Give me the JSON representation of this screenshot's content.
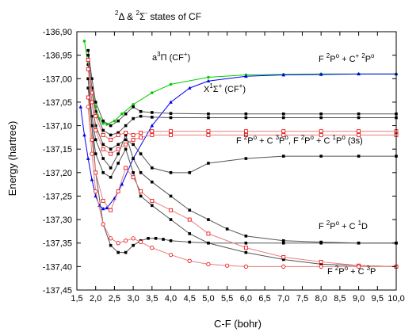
{
  "chart_data": {
    "type": "line",
    "title": "<sup>2</sup>Δ & <sup>2</sup>Σ<sup>-</sup> states of CF",
    "title_parts": [
      "2",
      "Δ & ",
      "2",
      "Σ",
      "-",
      " states of CF"
    ],
    "xlabel": "C-F (bohr)",
    "ylabel": "Energy (hartree)",
    "xlim": [
      1.5,
      10.0
    ],
    "ylim": [
      -137.45,
      -136.9
    ],
    "grid": false,
    "x_ticks": [
      "1,5",
      "2,0",
      "2,5",
      "3,0",
      "3,5",
      "4,0",
      "4,5",
      "5,0",
      "5,5",
      "6,0",
      "6,5",
      "7,0",
      "7,5",
      "8,0",
      "8,5",
      "9,0",
      "9,5",
      "10,0"
    ],
    "y_ticks": [
      "-136,90",
      "-136,95",
      "-137,00",
      "-137,05",
      "-137,10",
      "-137,15",
      "-137,20",
      "-137,25",
      "-137,30",
      "-137,35",
      "-137,40",
      "-137,45"
    ],
    "annotations": {
      "a3pi": {
        "main": "a",
        "sup1": "3",
        "mid": "Π (CF",
        "sup2": "+",
        "end": ")"
      },
      "x1sigma": {
        "main": "X",
        "sup1": "1",
        "mid": "Σ",
        "sup2": "+",
        "end": " (CF",
        "sup3": "+",
        "end2": ")"
      },
      "asym1": {
        "p1": "F ",
        "s1": "2",
        "p2": "P",
        "s2": "o",
        "p3": " + C",
        "s3": "+",
        "p4": " ",
        "s4": "2",
        "p5": "P",
        "s5": "o"
      },
      "asym2": {
        "p1": "F ",
        "s1": "2",
        "p2": "P",
        "s2": "o",
        "p3": " + C ",
        "s3": "3",
        "p4": "P",
        "s4": "o",
        "p5": ", F ",
        "s5": "2",
        "p6": "P",
        "s6": "o",
        "p7": " + C ",
        "s7": "1",
        "p8": "P",
        "s8": "o",
        "p9": " (3s)"
      },
      "asym3": {
        "p1": "F ",
        "s1": "2",
        "p2": "P",
        "s2": "o",
        "p3": " + C ",
        "s3": "1",
        "p4": "D"
      },
      "asym4": {
        "p1": "F ",
        "s1": "2",
        "p2": "P",
        "s2": "o",
        "p3": " + C ",
        "s3": "3",
        "p4": "P"
      }
    },
    "series": [
      {
        "color": "#00cc00",
        "marker": "circle",
        "x": [
          1.7,
          1.8,
          1.9,
          2.0,
          2.1,
          2.2,
          2.3,
          2.5,
          2.7,
          3.0,
          3.5,
          4.0,
          5.0,
          6.0,
          7.0,
          8.0,
          9.0,
          10.0
        ],
        "y": [
          -136.92,
          -136.97,
          -137.02,
          -137.06,
          -137.085,
          -137.095,
          -137.097,
          -137.09,
          -137.075,
          -137.055,
          -137.03,
          -137.012,
          -136.997,
          -136.992,
          -136.991,
          -136.99,
          -136.99,
          -136.99
        ]
      },
      {
        "color": "#0000ee",
        "marker": "triangle",
        "x": [
          1.6,
          1.7,
          1.8,
          1.9,
          2.0,
          2.1,
          2.2,
          2.3,
          2.5,
          2.7,
          3.0,
          3.5,
          4.0,
          4.5,
          5.0,
          6.0,
          7.0,
          8.0,
          9.0,
          10.0
        ],
        "y": [
          -137.06,
          -137.12,
          -137.17,
          -137.215,
          -137.25,
          -137.27,
          -137.277,
          -137.275,
          -137.255,
          -137.225,
          -137.17,
          -137.1,
          -137.05,
          -137.02,
          -137.005,
          -136.995,
          -136.992,
          -136.991,
          -136.99,
          -136.99
        ]
      },
      {
        "color": "#000000",
        "marker": "square",
        "x": [
          1.8,
          1.9,
          2.0,
          2.2,
          2.4,
          2.6,
          2.8,
          3.0,
          3.2,
          3.5,
          4.0,
          5.0,
          6.0,
          7.0,
          8.0,
          9.0,
          10.0
        ],
        "y": [
          -136.94,
          -137.0,
          -137.05,
          -137.09,
          -137.1,
          -137.09,
          -137.075,
          -137.06,
          -137.07,
          -137.072,
          -137.074,
          -137.075,
          -137.075,
          -137.075,
          -137.075,
          -137.075,
          -137.075
        ]
      },
      {
        "color": "#000000",
        "marker": "square",
        "x": [
          1.8,
          1.9,
          2.0,
          2.2,
          2.4,
          2.6,
          2.8,
          3.0,
          3.2,
          3.5,
          4.0,
          5.0,
          6.0,
          7.0,
          8.0,
          9.0,
          10.0
        ],
        "y": [
          -136.95,
          -137.02,
          -137.07,
          -137.11,
          -137.12,
          -137.115,
          -137.1,
          -137.085,
          -137.08,
          -137.082,
          -137.083,
          -137.083,
          -137.083,
          -137.083,
          -137.083,
          -137.083,
          -137.083
        ]
      },
      {
        "color": "#000000",
        "marker": "square",
        "x": [
          1.8,
          1.9,
          2.0,
          2.2,
          2.4,
          2.6,
          2.8,
          3.0,
          3.2,
          3.5,
          4.0,
          4.5,
          5.0,
          6.0,
          7.0,
          8.0,
          9.0,
          10.0
        ],
        "y": [
          -136.97,
          -137.05,
          -137.1,
          -137.14,
          -137.15,
          -137.14,
          -137.13,
          -137.14,
          -137.16,
          -137.19,
          -137.2,
          -137.2,
          -137.18,
          -137.17,
          -137.165,
          -137.165,
          -137.165,
          -137.165
        ]
      },
      {
        "color": "#000000",
        "marker": "square",
        "x": [
          1.8,
          1.9,
          2.0,
          2.2,
          2.4,
          2.6,
          2.8,
          3.0,
          3.2,
          3.5,
          4.0,
          4.5,
          5.0,
          5.5,
          6.0,
          7.0,
          8.0,
          9.0,
          10.0
        ],
        "y": [
          -137.0,
          -137.08,
          -137.13,
          -137.17,
          -137.19,
          -137.16,
          -137.12,
          -137.17,
          -137.2,
          -137.22,
          -137.25,
          -137.28,
          -137.3,
          -137.32,
          -137.335,
          -137.345,
          -137.348,
          -137.35,
          -137.35
        ]
      },
      {
        "color": "#000000",
        "marker": "square",
        "x": [
          1.8,
          1.9,
          2.0,
          2.2,
          2.4,
          2.6,
          2.8,
          3.0,
          3.2,
          3.5,
          4.0,
          4.5,
          5.0,
          6.0,
          7.0,
          8.0,
          9.0,
          10.0
        ],
        "y": [
          -137.02,
          -137.1,
          -137.16,
          -137.2,
          -137.21,
          -137.18,
          -137.15,
          -137.2,
          -137.25,
          -137.27,
          -137.3,
          -137.33,
          -137.35,
          -137.37,
          -137.385,
          -137.395,
          -137.398,
          -137.4
        ]
      },
      {
        "color": "#000000",
        "marker": "square",
        "x": [
          1.8,
          1.9,
          2.0,
          2.2,
          2.4,
          2.6,
          2.8,
          3.0,
          3.2,
          3.4,
          3.6,
          3.8,
          4.0,
          4.5,
          5.0,
          6.0,
          7.0,
          8.0,
          9.0,
          10.0
        ],
        "y": [
          -137.0,
          -137.1,
          -137.2,
          -137.31,
          -137.355,
          -137.37,
          -137.37,
          -137.355,
          -137.345,
          -137.34,
          -137.34,
          -137.342,
          -137.345,
          -137.348,
          -137.35,
          -137.35,
          -137.35,
          -137.35,
          -137.35,
          -137.35
        ]
      },
      {
        "color": "#ee0000",
        "marker": "open-square",
        "x": [
          1.8,
          1.9,
          2.0,
          2.2,
          2.4,
          2.6,
          2.8,
          3.0,
          3.2,
          3.5,
          4.0,
          5.0,
          6.0,
          7.0,
          8.0,
          9.0,
          10.0
        ],
        "y": [
          -136.96,
          -137.03,
          -137.08,
          -137.12,
          -137.13,
          -137.12,
          -137.115,
          -137.12,
          -137.115,
          -137.112,
          -137.112,
          -137.112,
          -137.112,
          -137.112,
          -137.112,
          -137.112,
          -137.112
        ]
      },
      {
        "color": "#ee0000",
        "marker": "open-square",
        "x": [
          1.8,
          1.9,
          2.0,
          2.2,
          2.4,
          2.6,
          2.8,
          3.0,
          3.2,
          3.5,
          4.0,
          5.0,
          6.0,
          7.0,
          8.0,
          9.0,
          10.0
        ],
        "y": [
          -136.98,
          -137.05,
          -137.11,
          -137.15,
          -137.16,
          -137.15,
          -137.14,
          -137.13,
          -137.125,
          -137.12,
          -137.12,
          -137.12,
          -137.12,
          -137.12,
          -137.12,
          -137.12,
          -137.12
        ]
      },
      {
        "color": "#ee0000",
        "marker": "open-square",
        "x": [
          1.8,
          1.9,
          2.0,
          2.2,
          2.4,
          2.6,
          2.8,
          3.0,
          3.2,
          3.5,
          4.0,
          4.5,
          5.0,
          6.0,
          7.0,
          8.0,
          9.0,
          10.0
        ],
        "y": [
          -137.04,
          -137.13,
          -137.2,
          -137.26,
          -137.28,
          -137.24,
          -137.19,
          -137.21,
          -137.24,
          -137.26,
          -137.28,
          -137.3,
          -137.33,
          -137.36,
          -137.38,
          -137.39,
          -137.398,
          -137.4
        ]
      },
      {
        "color": "#ee0000",
        "marker": "open-circle",
        "x": [
          1.8,
          1.9,
          2.0,
          2.2,
          2.4,
          2.6,
          2.8,
          3.0,
          3.2,
          3.5,
          4.0,
          4.5,
          5.0,
          5.5,
          6.0,
          7.0,
          8.0,
          9.0,
          10.0
        ],
        "y": [
          -137.06,
          -137.16,
          -137.24,
          -137.31,
          -137.34,
          -137.35,
          -137.345,
          -137.34,
          -137.348,
          -137.36,
          -137.375,
          -137.388,
          -137.395,
          -137.398,
          -137.4,
          -137.4,
          -137.4,
          -137.4,
          -137.4
        ]
      }
    ]
  }
}
